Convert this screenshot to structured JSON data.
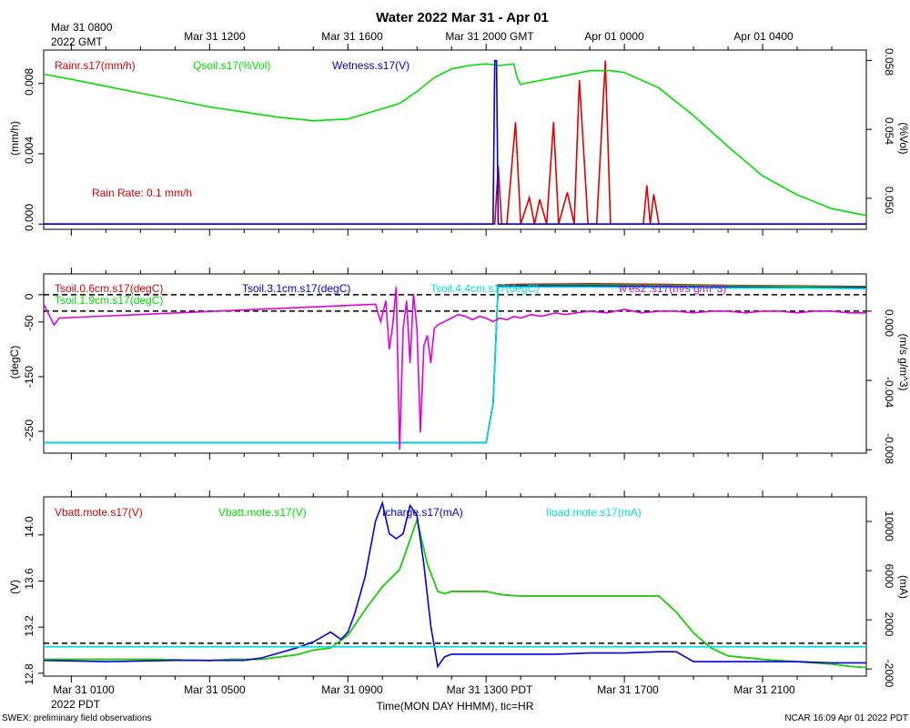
{
  "title": "Water 2022 Mar 31 - Apr 01",
  "top_axis": {
    "first_label_line1": "Mar 31 0800",
    "first_label_line2": "2022 GMT",
    "labels": [
      "Mar 31 1200",
      "Mar 31 1600",
      "Mar 31 2000 GMT",
      "Apr 01 0000",
      "Apr 01 0400"
    ]
  },
  "bottom_axis": {
    "first_label_line1": "Mar 31 0100",
    "first_label_line2": "2022 PDT",
    "labels": [
      "Mar 31 0500",
      "Mar 31 0900",
      "Mar 31 1300 PDT",
      "Mar 31 1700",
      "Mar 31 2100"
    ],
    "xlabel": "Time(MON DAY HHMM), tic=HR"
  },
  "footer": {
    "left": "SWEX: preliminary field observations",
    "right": "NCAR 16:09 Apr 01 2022 PDT"
  },
  "chart_data": [
    {
      "type": "line",
      "x_unit": "hours since 2022-03-31 00:00 PDT",
      "xlim": [
        0.2,
        24.0
      ],
      "ylabel_left": "(mm/h)",
      "ylabel_right": "(%Vol)",
      "ylim_left": [
        -0.0003,
        0.0099
      ],
      "ylim_right": [
        0.0482,
        0.0586
      ],
      "yticks_left": [
        "0.000",
        "0.004",
        "0.008"
      ],
      "yticks_right": [
        "0.050",
        "0.054",
        "0.058"
      ],
      "annotation": "Rain Rate: 0.1 mm/h",
      "series": [
        {
          "name": "Rainr.s17(mm/h)",
          "axis": "left",
          "color": "#e00000",
          "x": [
            0.2,
            13.25,
            13.35,
            13.45,
            13.6,
            13.85,
            14.0,
            14.25,
            14.4,
            14.55,
            14.75,
            14.95,
            15.1,
            15.35,
            15.55,
            15.7,
            15.95,
            16.2,
            16.45,
            16.6,
            16.75,
            17.25,
            17.55,
            17.65,
            17.75,
            17.85,
            18.0,
            24.0
          ],
          "y": [
            0,
            0,
            0.0033,
            0,
            0,
            0.0058,
            0,
            0.0015,
            0,
            0.0014,
            0,
            0.0058,
            0,
            0.0018,
            0,
            0.0082,
            0,
            0,
            0.0093,
            0,
            0,
            0,
            0,
            0.0022,
            0,
            0.0017,
            0,
            0
          ]
        },
        {
          "name": "Qsoil.s17(%Vol)",
          "axis": "right",
          "color": "#00e000",
          "x": [
            0.2,
            1,
            2,
            3,
            4,
            5,
            6,
            7,
            8,
            9,
            10,
            10.5,
            11,
            11.5,
            12,
            12.5,
            13,
            13.4,
            13.8,
            13.9,
            14.0,
            14.2,
            15,
            16,
            16.6,
            17,
            18,
            19,
            20,
            21,
            22,
            23,
            24
          ],
          "y": [
            0.0572,
            0.0569,
            0.0565,
            0.0561,
            0.0557,
            0.0553,
            0.055,
            0.0547,
            0.0545,
            0.0546,
            0.0552,
            0.0555,
            0.0562,
            0.057,
            0.0575,
            0.0577,
            0.0578,
            0.0577,
            0.0578,
            0.057,
            0.0566,
            0.0567,
            0.057,
            0.0574,
            0.0574,
            0.0573,
            0.0564,
            0.0548,
            0.053,
            0.0513,
            0.0502,
            0.0494,
            0.049
          ]
        },
        {
          "name": "Wetness.s17(V)",
          "axis": "left",
          "color": "#0000e0",
          "x": [
            0.2,
            13.2,
            13.25,
            13.3,
            13.35,
            24.0
          ],
          "y": [
            0,
            0,
            0.0093,
            0.0093,
            0,
            0
          ]
        }
      ],
      "reference_lines": [
        {
          "axis": "left",
          "y": 0
        }
      ]
    },
    {
      "type": "line",
      "x_unit": "hours since 2022-03-31 00:00 PDT",
      "xlim": [
        0.2,
        24.0
      ],
      "ylabel_left": "(degC)",
      "ylabel_right": "(m/s g/m^3)",
      "ylim_left": [
        -290,
        38
      ],
      "ylim_right": [
        -0.0082,
        0.00215
      ],
      "yticks_left": [
        "0",
        "-50",
        "-150",
        "-250"
      ],
      "yticks_right": [
        "0.000",
        "-0.004",
        "-0.008"
      ],
      "series": [
        {
          "name": "Tsoil.0.6cm.s17(degC)",
          "axis": "left",
          "color": "#e00000",
          "x": [
            0.2,
            13.0,
            13.2,
            13.35,
            14.0,
            16.0,
            18.0,
            20.0,
            22.0,
            24.0
          ],
          "y": [
            -271,
            -271,
            -200,
            18,
            19,
            20,
            19,
            17,
            16,
            15
          ]
        },
        {
          "name": "Tsoil.1.9cm.s17(degC)",
          "axis": "left",
          "color": "#00e000",
          "x": [
            0.2,
            13.0,
            13.2,
            13.35,
            14.0,
            16.0,
            18.0,
            20.0,
            22.0,
            24.0
          ],
          "y": [
            -271,
            -271,
            -200,
            16,
            17,
            18,
            17,
            16,
            15,
            14
          ]
        },
        {
          "name": "Tsoil.3.1cm.s17(degC)",
          "axis": "left",
          "color": "#0000e0",
          "x": [
            0.2,
            13.0,
            13.2,
            13.35,
            14.0,
            16.0,
            18.0,
            20.0,
            22.0,
            24.0
          ],
          "y": [
            -271,
            -271,
            -200,
            15,
            16,
            16,
            15,
            14,
            13,
            13
          ]
        },
        {
          "name": "Tsoil.4.4cm.s17(degC)",
          "axis": "left",
          "color": "#00e0e0",
          "x": [
            0.2,
            13.0,
            13.2,
            13.35,
            14.0,
            16.0,
            18.0,
            20.0,
            22.0,
            24.0
          ],
          "y": [
            -271,
            -271,
            -200,
            14,
            14,
            14,
            13,
            12,
            12,
            11
          ]
        },
        {
          "name": "w'es2'.s17(m/s g/m^3)",
          "axis": "right",
          "color": "#e000e0",
          "x": [
            0.2,
            0.35,
            0.5,
            0.65,
            9.8,
            9.95,
            10.1,
            10.2,
            10.3,
            10.4,
            10.5,
            10.6,
            10.7,
            10.8,
            10.9,
            11.0,
            11.1,
            11.2,
            11.3,
            11.4,
            11.5,
            11.6,
            11.8,
            12.0,
            12.2,
            12.4,
            12.6,
            12.8,
            13.0,
            13.2,
            13.4,
            13.6,
            13.8,
            14.0,
            14.3,
            14.6,
            15.0,
            15.3,
            15.6,
            16.0,
            16.5,
            17.0,
            17.5,
            18.0,
            18.5,
            19.0,
            19.5,
            20.0,
            20.5,
            21.0,
            21.5,
            22.0,
            22.5,
            23.0,
            23.5,
            24.0
          ],
          "y": [
            0.0004,
            -0.0002,
            -0.0008,
            -0.0004,
            0.0004,
            -0.0006,
            0.0006,
            -0.0022,
            -0.0008,
            0.0014,
            -0.008,
            -0.001,
            0.0006,
            -0.003,
            0.001,
            -0.001,
            -0.007,
            -0.002,
            -0.0014,
            -0.003,
            -0.001,
            -0.0008,
            -0.0006,
            -0.0004,
            -0.0002,
            -0.0003,
            -0.0005,
            -0.0003,
            -0.0004,
            -0.0006,
            -0.0004,
            -0.0005,
            -0.0003,
            -0.0004,
            -0.0002,
            -0.0003,
            -0.0001,
            -0.0002,
            -0.0001,
            0.0,
            -0.0001,
            0.0001,
            -0.0001,
            0.0,
            0.0,
            -0.0001,
            0.0,
            0.0,
            -0.0001,
            0.0,
            0.0,
            -0.0001,
            0.0,
            0.0,
            -0.0001,
            -0.0001
          ]
        }
      ],
      "reference_lines": [
        {
          "axis": "left",
          "y": 0
        },
        {
          "axis": "right",
          "y": 0
        }
      ]
    },
    {
      "type": "line",
      "x_unit": "hours since 2022-03-31 00:00 PDT",
      "xlim": [
        0.2,
        24.0
      ],
      "ylabel_left": "(V)",
      "ylabel_right": "(mA)",
      "ylim_left": [
        12.775,
        14.33
      ],
      "ylim_right": [
        -2580,
        12000
      ],
      "yticks_left": [
        "12.8",
        "13.2",
        "13.6",
        "14.0"
      ],
      "yticks_right": [
        "-2000",
        "2000",
        "6000",
        "10000"
      ],
      "series": [
        {
          "name": "Vbatt.mote.s17(V)",
          "axis": "left",
          "color": "#e00000",
          "x": [
            0.2,
            2.0,
            3.5,
            5.0,
            5.6,
            6.5,
            7.5,
            8.0,
            8.5,
            9.0,
            9.5,
            10.0,
            10.5,
            11.0,
            11.3,
            11.6,
            11.8,
            12.0,
            13.0,
            13.3,
            13.5,
            14.0,
            15.0,
            16.0,
            17.0,
            18.0,
            18.5,
            19.0,
            19.5,
            20.0,
            21.0,
            22.0,
            23.0,
            23.5,
            24.0
          ],
          "y": [
            12.92,
            12.92,
            12.92,
            12.91,
            12.92,
            12.92,
            12.96,
            13.0,
            13.02,
            13.13,
            13.35,
            13.55,
            13.7,
            14.13,
            13.75,
            13.51,
            13.49,
            13.51,
            13.51,
            13.49,
            13.48,
            13.47,
            13.47,
            13.47,
            13.47,
            13.47,
            13.33,
            13.15,
            13.02,
            12.95,
            12.92,
            12.9,
            12.88,
            12.86,
            12.85
          ]
        },
        {
          "name": "Vbatt.mote.s17(V)",
          "axis": "left",
          "color": "#00e000",
          "x": [
            0.2,
            2.0,
            3.5,
            5.0,
            5.6,
            6.5,
            7.5,
            8.0,
            8.5,
            9.0,
            9.5,
            10.0,
            10.5,
            11.0,
            11.3,
            11.6,
            11.8,
            12.0,
            13.0,
            13.3,
            13.5,
            14.0,
            15.0,
            16.0,
            17.0,
            18.0,
            18.5,
            19.0,
            19.5,
            20.0,
            21.0,
            22.0,
            23.0,
            23.5,
            24.0
          ],
          "y": [
            12.92,
            12.92,
            12.92,
            12.91,
            12.92,
            12.92,
            12.96,
            13.0,
            13.02,
            13.13,
            13.35,
            13.55,
            13.7,
            14.13,
            13.75,
            13.51,
            13.49,
            13.51,
            13.51,
            13.49,
            13.48,
            13.47,
            13.47,
            13.47,
            13.47,
            13.47,
            13.33,
            13.15,
            13.02,
            12.95,
            12.92,
            12.9,
            12.88,
            12.86,
            12.85
          ]
        },
        {
          "name": "Icharge.s17(mA)",
          "axis": "right",
          "color": "#0000e0",
          "x": [
            0.2,
            2.0,
            4.0,
            6.0,
            6.5,
            7.0,
            7.5,
            8.0,
            8.5,
            8.8,
            9.0,
            9.2,
            9.5,
            9.8,
            10.0,
            10.2,
            10.4,
            10.6,
            10.8,
            11.0,
            11.2,
            11.4,
            11.6,
            11.8,
            12.0,
            13.0,
            14.0,
            15.0,
            16.0,
            17.0,
            18.0,
            18.5,
            19.0,
            20.0,
            21.0,
            22.0,
            23.0,
            24.0
          ],
          "y": [
            -1300,
            -1400,
            -1300,
            -1300,
            -1100,
            -700,
            -300,
            200,
            1000,
            400,
            1000,
            2500,
            5500,
            10000,
            11500,
            9000,
            8600,
            9000,
            11300,
            10500,
            6500,
            1500,
            -1800,
            -1000,
            -800,
            -800,
            -800,
            -800,
            -700,
            -700,
            -600,
            -600,
            -1400,
            -1400,
            -1400,
            -1400,
            -1500,
            -1500
          ]
        },
        {
          "name": "Iload.mote.s17(mA)",
          "axis": "right",
          "color": "#00e0e0",
          "x": [
            0.2,
            24.0
          ],
          "y": [
            -200,
            -200
          ]
        }
      ],
      "reference_lines": [
        {
          "axis": "left",
          "y": 13.06
        }
      ]
    }
  ]
}
